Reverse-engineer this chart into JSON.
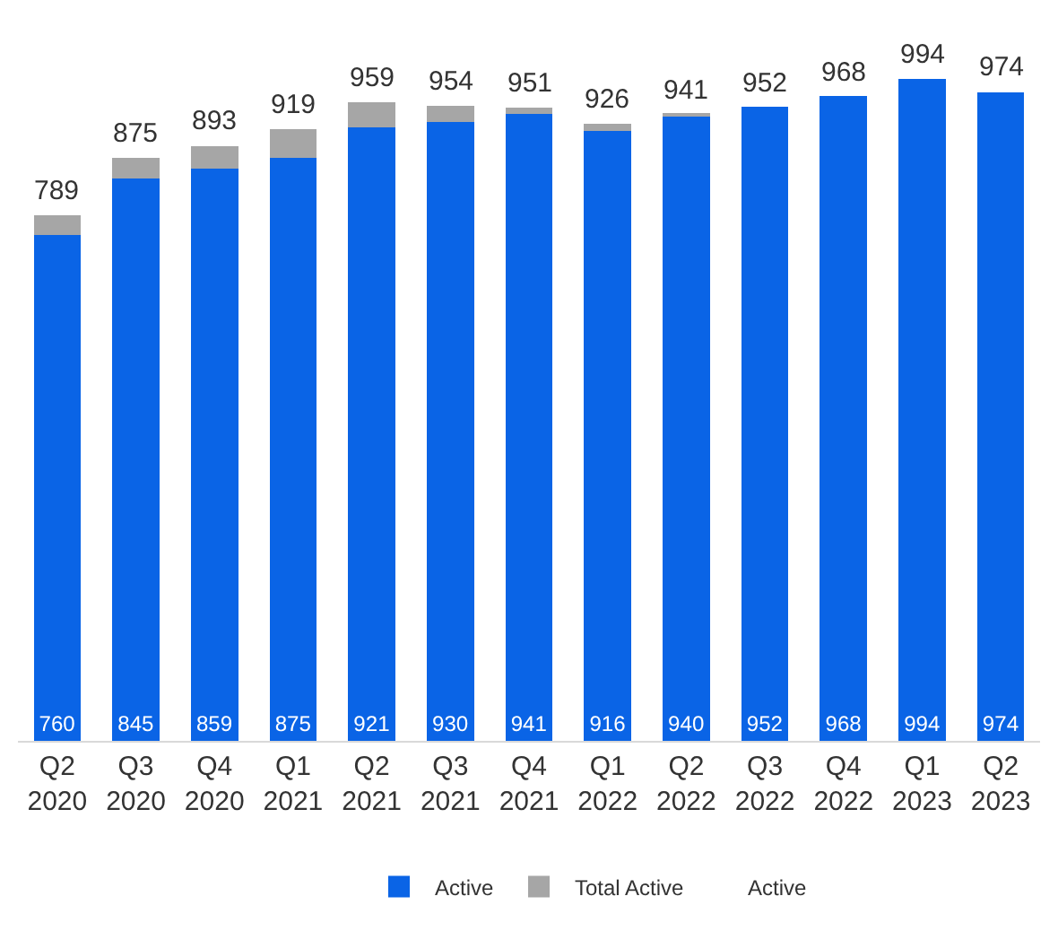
{
  "chart_data": {
    "type": "bar",
    "stacked": true,
    "categories": [
      "Q2\n2020",
      "Q3\n2020",
      "Q4\n2020",
      "Q1\n2021",
      "Q2\n2021",
      "Q3\n2021",
      "Q4\n2021",
      "Q1\n2022",
      "Q2\n2022",
      "Q3\n2022",
      "Q4\n2022",
      "Q1\n2023",
      "Q2\n2023"
    ],
    "series": [
      {
        "name": "Active",
        "color": "#0a64e6",
        "values": [
          760,
          845,
          859,
          875,
          921,
          930,
          941,
          916,
          940,
          952,
          968,
          994,
          974
        ],
        "value_labels": [
          "760",
          "845",
          "859",
          "875",
          "921",
          "930",
          "941",
          "916",
          "940",
          "952",
          "968",
          "994",
          "974"
        ]
      },
      {
        "name": "Total Active",
        "color": "#a6a6a6",
        "values": [
          29,
          30,
          34,
          44,
          38,
          24,
          10,
          10,
          1,
          0,
          0,
          0,
          0
        ]
      }
    ],
    "annotations": [
      "Active"
    ],
    "totals": [
      "789",
      "875",
      "893",
      "919",
      "959",
      "954",
      "951",
      "926",
      "941",
      "952",
      "968",
      "994",
      "974"
    ],
    "tick_labels": "x",
    "grid": false,
    "legend": "bottom"
  }
}
